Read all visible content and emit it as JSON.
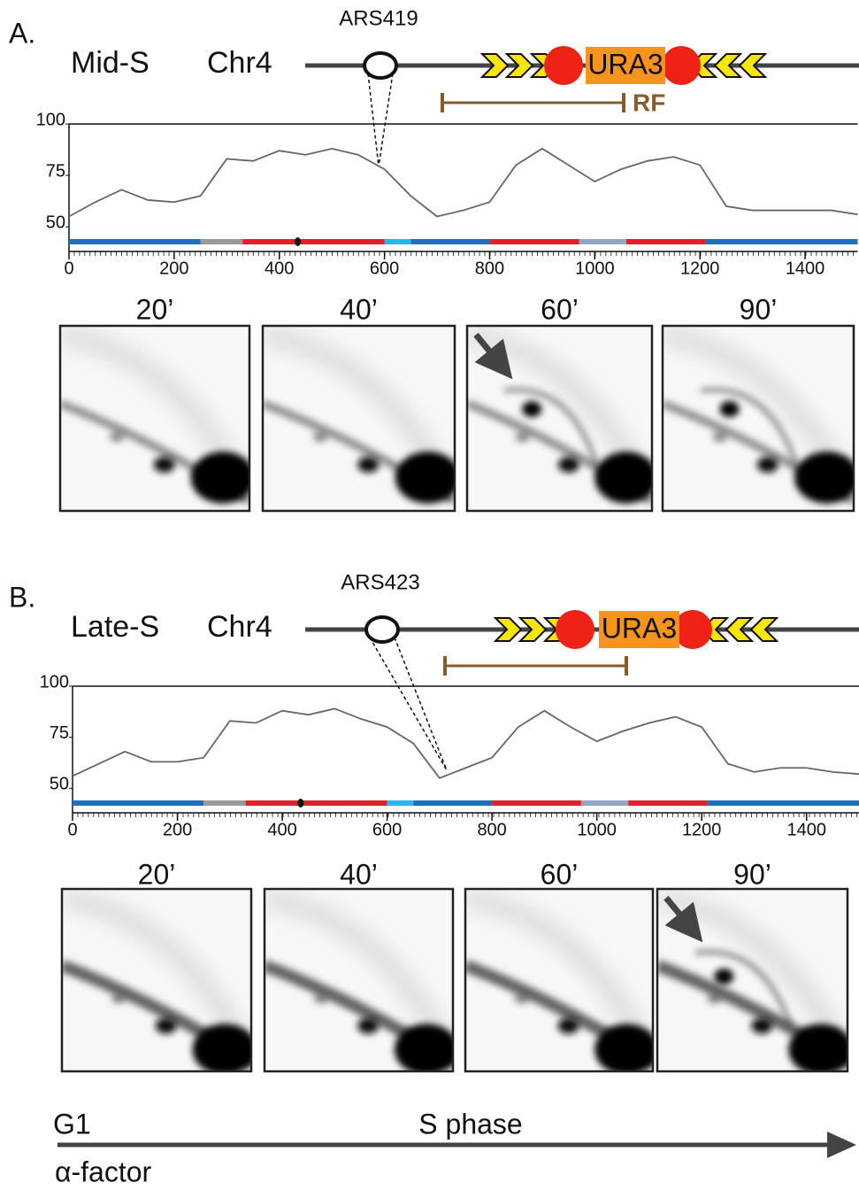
{
  "panels": [
    {
      "label": "A.",
      "phase": "Mid-S",
      "chromosome": "Chr4",
      "origin": "ARS419",
      "gene": "URA3",
      "fork_label": "RF",
      "gels": [
        "20’",
        "40’",
        "60’",
        "90’"
      ]
    },
    {
      "label": "B.",
      "phase": "Late-S",
      "chromosome": "Chr4",
      "origin": "ARS423",
      "gene": "URA3",
      "gels": [
        "20’",
        "40’",
        "60’",
        "90’"
      ]
    }
  ],
  "chart_data": [
    {
      "type": "line",
      "x": [
        0,
        50,
        100,
        150,
        200,
        250,
        300,
        350,
        400,
        450,
        500,
        550,
        600,
        650,
        700,
        750,
        800,
        850,
        900,
        950,
        1000,
        1050,
        1100,
        1150,
        1200,
        1250,
        1300,
        1350,
        1400,
        1450,
        1500
      ],
      "series": [
        {
          "color": "#666666",
          "values": [
            55,
            62,
            68,
            63,
            62,
            65,
            83,
            82,
            87,
            85,
            88,
            85,
            78,
            65,
            55,
            58,
            62,
            80,
            88,
            80,
            72,
            78,
            82,
            84,
            80,
            60,
            58,
            58,
            58,
            58,
            56
          ]
        }
      ],
      "xlim": [
        0,
        1500
      ],
      "xticks": [
        0,
        200,
        400,
        600,
        800,
        1000,
        1200,
        1400
      ],
      "ylim": [
        38,
        100
      ],
      "yticks": [
        50,
        75,
        100
      ]
    },
    {
      "type": "line",
      "x": [
        0,
        50,
        100,
        150,
        200,
        250,
        300,
        350,
        400,
        450,
        500,
        550,
        600,
        650,
        700,
        750,
        800,
        850,
        900,
        950,
        1000,
        1050,
        1100,
        1150,
        1200,
        1250,
        1300,
        1350,
        1400,
        1450,
        1500
      ],
      "series": [
        {
          "color": "#666666",
          "values": [
            56,
            62,
            68,
            63,
            63,
            65,
            83,
            82,
            88,
            86,
            89,
            84,
            80,
            72,
            55,
            60,
            65,
            80,
            88,
            80,
            73,
            78,
            82,
            85,
            80,
            62,
            58,
            60,
            60,
            58,
            57
          ]
        }
      ],
      "xlim": [
        0,
        1500
      ],
      "xticks": [
        0,
        200,
        400,
        600,
        800,
        1000,
        1200,
        1400
      ],
      "ylim": [
        38,
        100
      ],
      "yticks": [
        50,
        75,
        100
      ]
    }
  ],
  "timeline": {
    "start": "G1",
    "phase": "S phase",
    "treatment": "α-factor"
  }
}
